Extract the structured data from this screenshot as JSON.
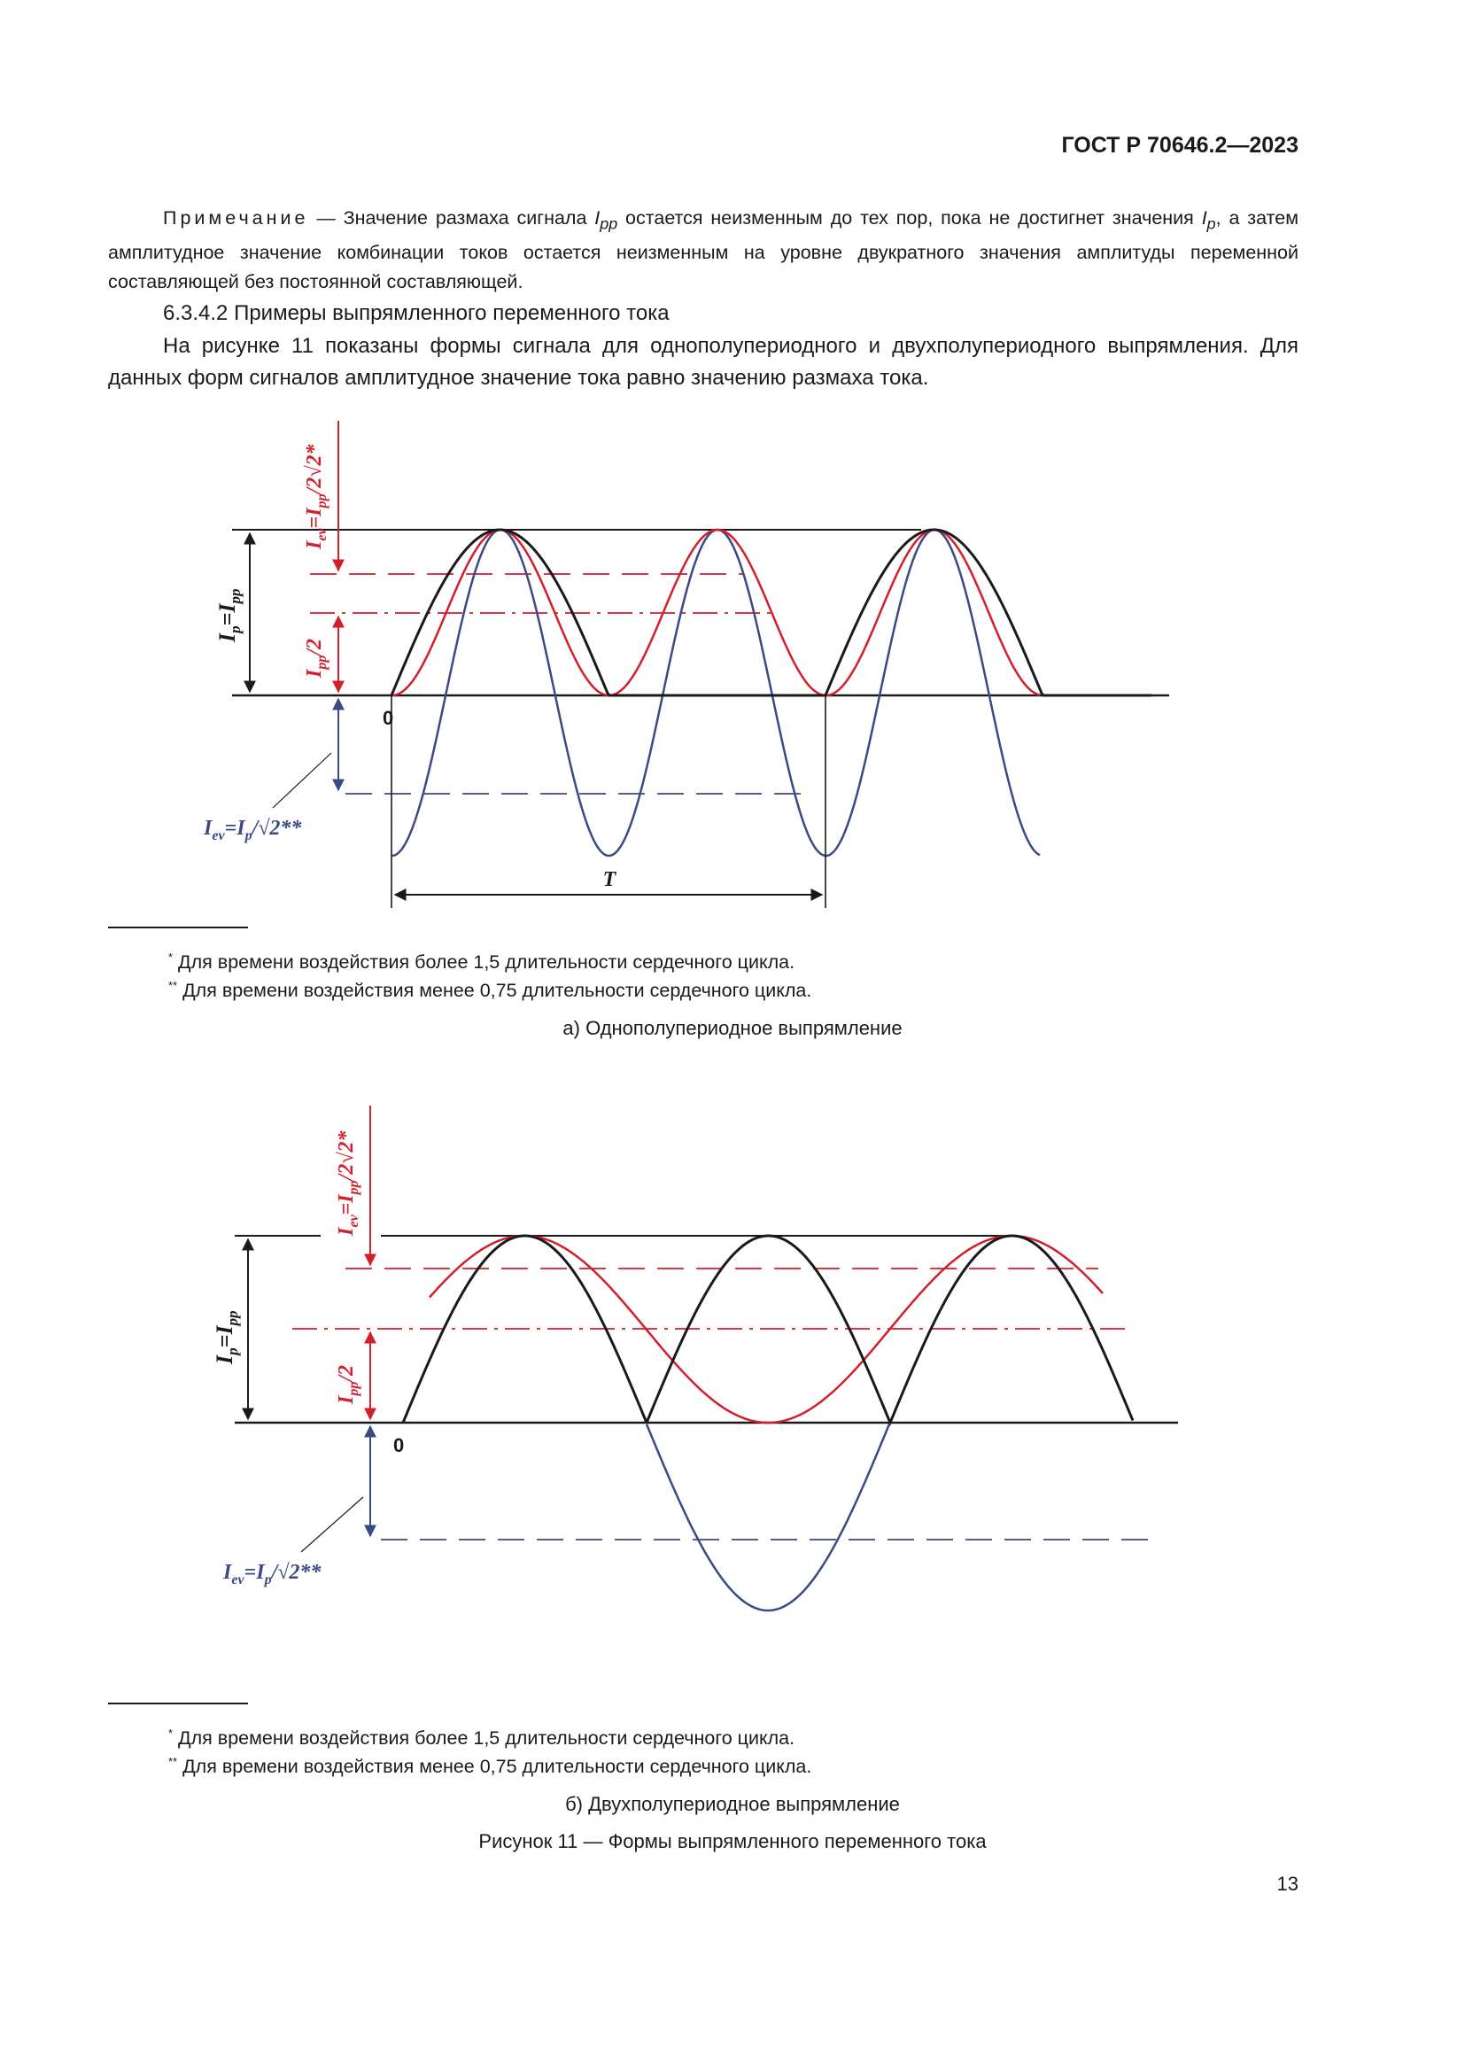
{
  "header": "ГОСТ Р 70646.2—2023",
  "note": {
    "lead": "Примечание",
    "text1": " — Значение размаха сигнала ",
    "sym1": "I",
    "sym1_sub": "pp",
    "text2": " остается неизменным до тех пор, пока не достигнет значения ",
    "sym2": "I",
    "sym2_sub": "p",
    "text3": ", а затем амплитудное значение комбинации токов остается неизменным на уровне двукратного значения амплитуды переменной составляющей без постоянной составляющей."
  },
  "clause": "6.3.4.2 Примеры выпрямленного переменного тока",
  "paragraph": "На рисунке 11 показаны формы сигнала для однополупериодного и двухполупериодного выпрямления. Для данных форм сигналов амплитудное значение тока равно значению размаха тока.",
  "colors": {
    "black": "#1a1a1a",
    "red": "#d21f2b",
    "blue": "#3b4a86"
  },
  "figure_a": {
    "label_ev_top": "I",
    "label_ev_top_sub": "ev",
    "label_ev_top_rest": "=I",
    "label_ev_top_sub2": "pp",
    "label_ev_top_tail": "/2√2*",
    "label_ip": "I",
    "label_ip_sub": "p",
    "label_ip_mid": "=I",
    "label_ip_sub2": "pp",
    "label_half": "I",
    "label_half_sub": "pp",
    "label_half_tail": "/2",
    "zero": "0",
    "period": "T",
    "label_ev_bottom": "I",
    "label_ev_bottom_sub": "ev",
    "label_ev_bottom_mid": "=I",
    "label_ev_bottom_sub2": "p",
    "label_ev_bottom_tail": "/√2**",
    "footnote1_mark": "*",
    "footnote1": "Для времени воздействия более 1,5 длительности сердечного цикла.",
    "footnote2_mark": "**",
    "footnote2": "Для времени воздействия менее 0,75 длительности сердечного цикла.",
    "caption": "а) Однополупериодное выпрямление"
  },
  "figure_b": {
    "label_ev_top": "I",
    "label_ev_top_sub": "ev",
    "label_ev_top_rest": "=I",
    "label_ev_top_sub2": "pp",
    "label_ev_top_tail": "/2√2*",
    "label_ip": "I",
    "label_ip_sub": "p",
    "label_ip_mid": "=I",
    "label_ip_sub2": "pp",
    "label_half": "I",
    "label_half_sub": "pp",
    "label_half_tail": "/2",
    "zero": "0",
    "label_ev_bottom": "I",
    "label_ev_bottom_sub": "ev",
    "label_ev_bottom_mid": "=I",
    "label_ev_bottom_sub2": "p",
    "label_ev_bottom_tail": "/√2**",
    "footnote1_mark": "*",
    "footnote1": "Для времени воздействия более 1,5 длительности сердечного цикла.",
    "footnote2_mark": "**",
    "footnote2": "Для времени воздействия менее 0,75 длительности сердечного цикла.",
    "caption": "б) Двухполупериодное выпрямление"
  },
  "figure_title": "Рисунок 11 — Формы выпрямленного переменного тока",
  "page_number": "13"
}
